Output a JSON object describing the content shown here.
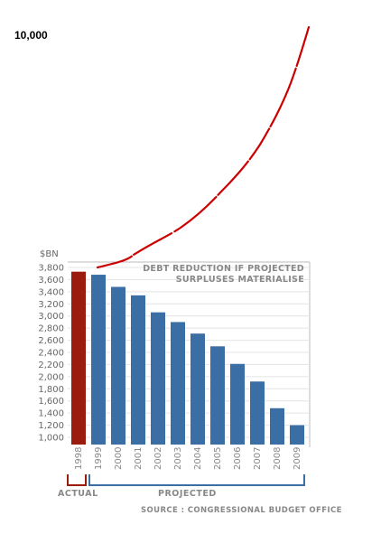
{
  "annotation": {
    "label": "10,000",
    "line_color": "#cc0000"
  },
  "chart_data": {
    "type": "bar",
    "ylabel": "$BN",
    "ylim": [
      1000,
      3800
    ],
    "yticks": [
      "3,800",
      "3,600",
      "3,400",
      "3,200",
      "3,000",
      "2,800",
      "2,600",
      "2,400",
      "2,200",
      "2,000",
      "1,800",
      "1,600",
      "1,400",
      "1,200",
      "1,000"
    ],
    "ytick_values": [
      3800,
      3600,
      3400,
      3200,
      3000,
      2800,
      2600,
      2400,
      2200,
      2000,
      1800,
      1600,
      1400,
      1200,
      1000
    ],
    "categories": [
      "1998",
      "1999",
      "2000",
      "2001",
      "2002",
      "2003",
      "2004",
      "2005",
      "2006",
      "2007",
      "2008",
      "2009"
    ],
    "values": [
      3730,
      3680,
      3480,
      3340,
      3060,
      2900,
      2710,
      2500,
      2210,
      1920,
      1480,
      1200
    ],
    "colors": [
      "#9b1b0f",
      "#3a6ea5",
      "#3a6ea5",
      "#3a6ea5",
      "#3a6ea5",
      "#3a6ea5",
      "#3a6ea5",
      "#3a6ea5",
      "#3a6ea5",
      "#3a6ea5",
      "#3a6ea5",
      "#3a6ea5"
    ],
    "title_line1": "DEBT REDUCTION IF PROJECTED",
    "title_line2": "SURPLUSES MATERIALISE",
    "group_actual": "ACTUAL",
    "group_projected": "PROJECTED",
    "source": "SOURCE : CONGRESSIONAL BUDGET OFFICE",
    "grid": true
  }
}
